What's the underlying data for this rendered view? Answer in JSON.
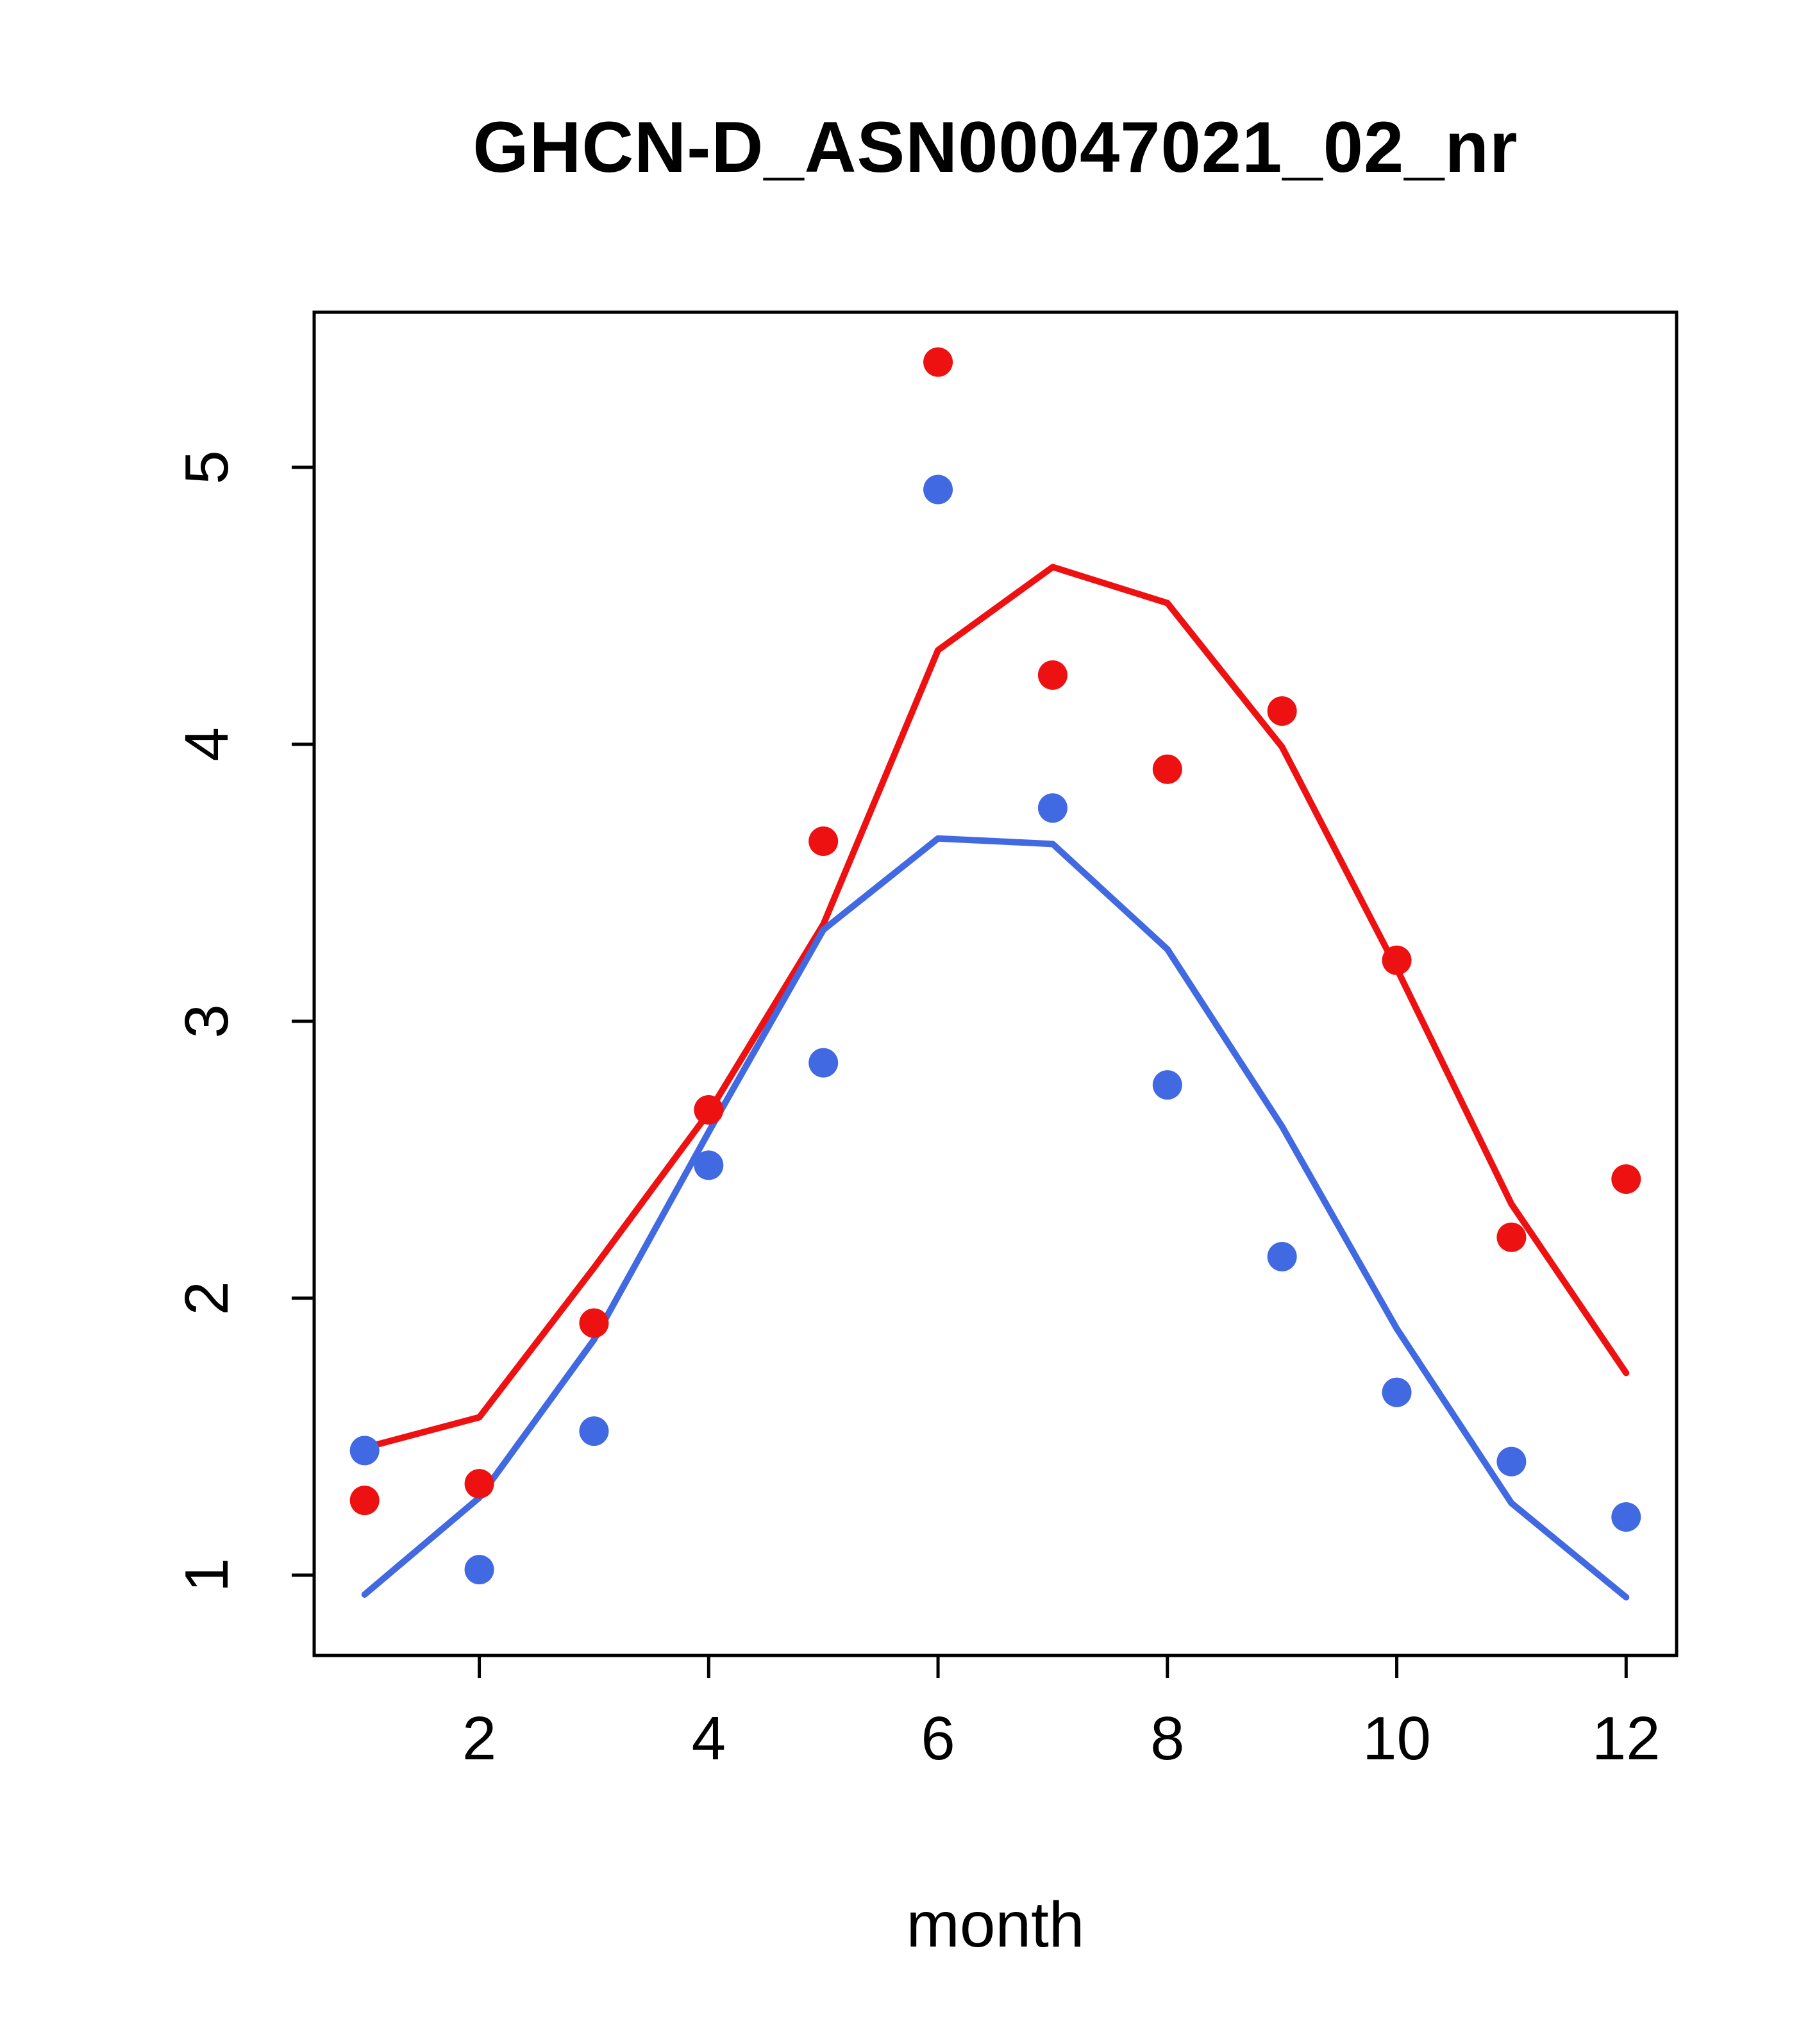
{
  "chart_data": {
    "type": "scatter",
    "title": "GHCN-D_ASN00047021_02_nr",
    "xlabel": "month",
    "ylabel": "",
    "x": [
      1,
      2,
      3,
      4,
      5,
      6,
      7,
      8,
      9,
      10,
      11,
      12
    ],
    "xlim": [
      0.56,
      12.44
    ],
    "ylim": [
      0.71,
      5.56
    ],
    "x_ticks": [
      2,
      4,
      6,
      8,
      10,
      12
    ],
    "y_ticks": [
      1,
      2,
      3,
      4,
      5
    ],
    "grid": false,
    "legend_position": "none",
    "colors": {
      "red": "#ee1111",
      "blue": "#4169e1",
      "axis": "#000000"
    },
    "series": [
      {
        "name": "red-fit-line",
        "kind": "line",
        "color": "#ee1111",
        "values": [
          1.46,
          1.57,
          2.11,
          2.67,
          3.35,
          4.34,
          4.64,
          4.51,
          3.99,
          3.19,
          2.34,
          1.73
        ]
      },
      {
        "name": "blue-fit-line",
        "kind": "line",
        "color": "#4169e1",
        "values": [
          0.93,
          1.28,
          1.85,
          2.6,
          3.33,
          3.66,
          3.64,
          3.26,
          2.62,
          1.89,
          1.26,
          0.92
        ]
      },
      {
        "name": "red-points",
        "kind": "points",
        "color": "#ee1111",
        "values": [
          1.27,
          1.33,
          1.91,
          2.68,
          3.65,
          5.38,
          4.25,
          3.91,
          4.12,
          3.22,
          2.22,
          2.43
        ]
      },
      {
        "name": "blue-points",
        "kind": "points",
        "color": "#4169e1",
        "values": [
          1.45,
          1.02,
          1.52,
          2.48,
          2.85,
          4.92,
          3.77,
          2.77,
          2.15,
          1.66,
          1.41,
          1.21
        ]
      }
    ]
  }
}
